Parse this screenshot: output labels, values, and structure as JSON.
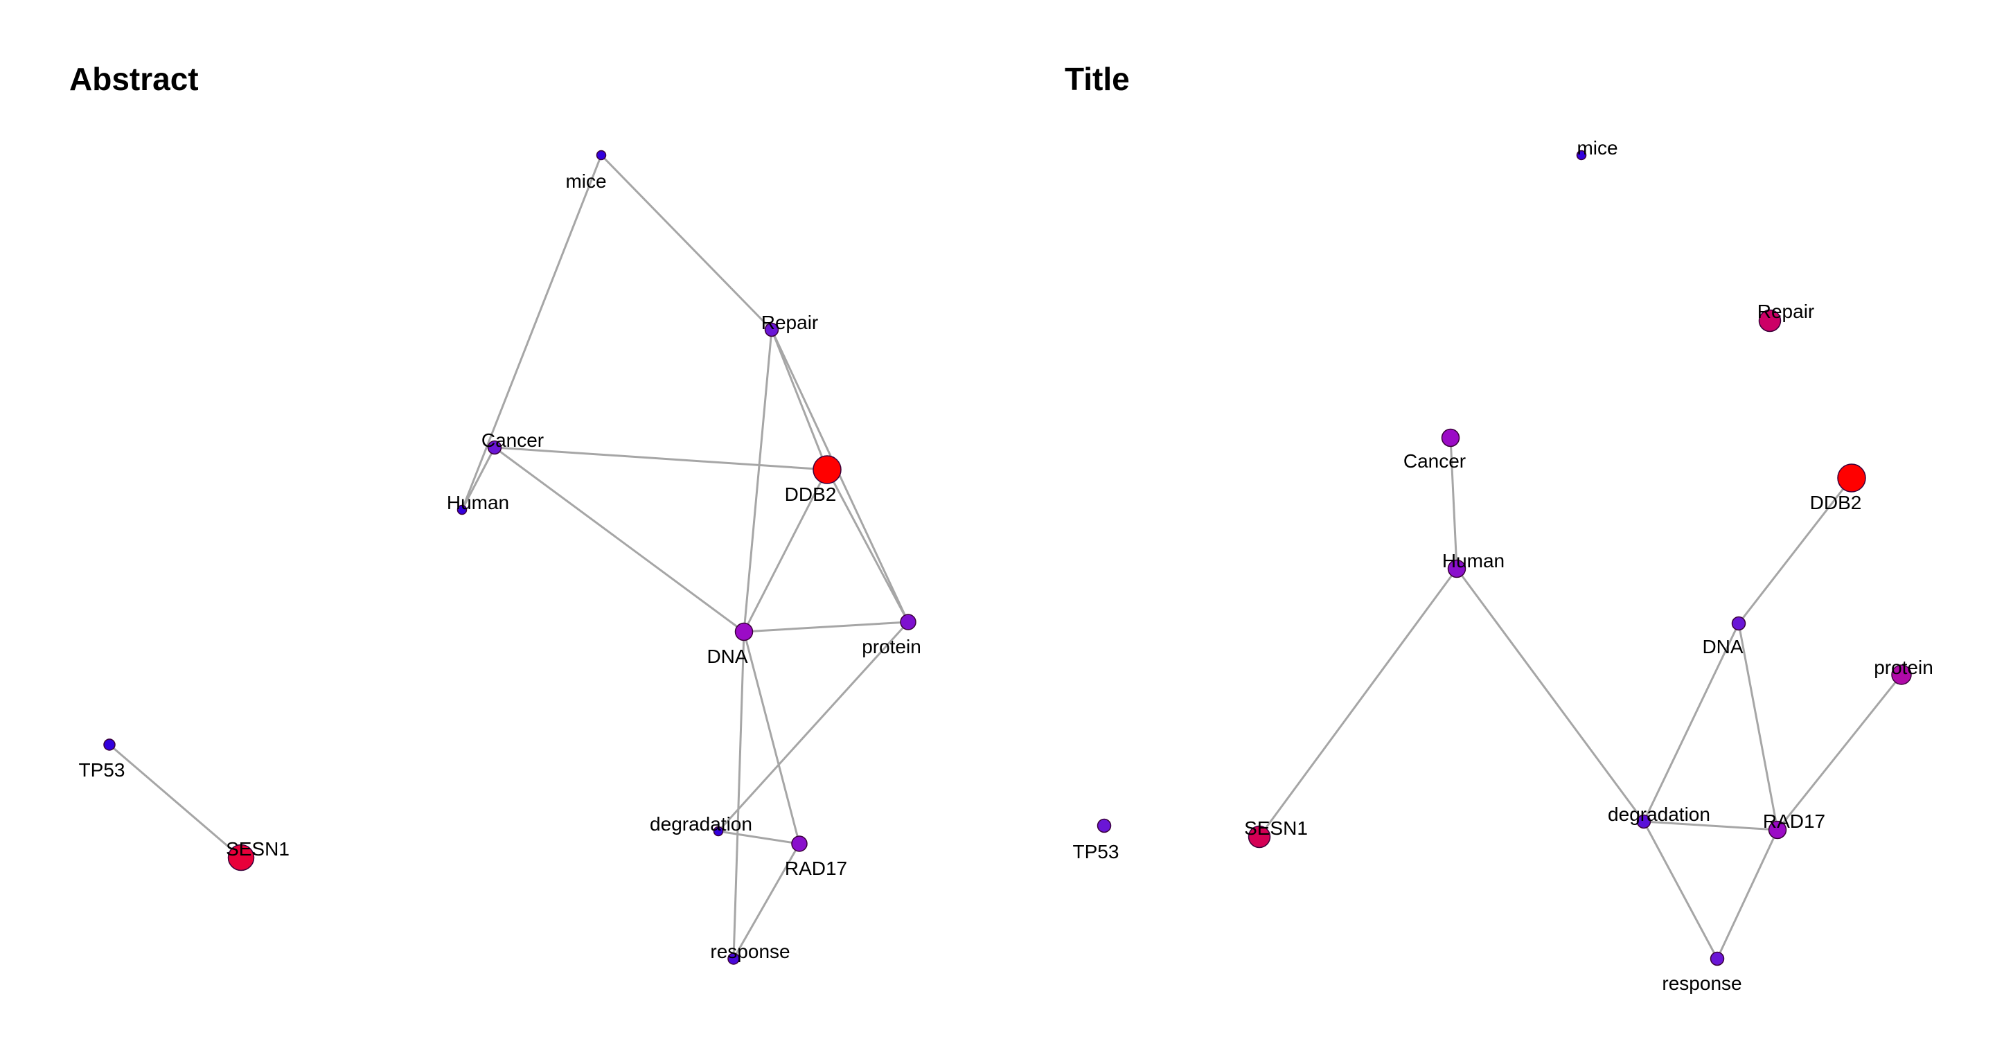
{
  "panels": [
    {
      "key": "abstract",
      "title": "Abstract",
      "nodes": [
        {
          "id": "mice",
          "label": "mice",
          "color": "#3300dd",
          "weight": 1
        },
        {
          "id": "Repair",
          "label": "Repair",
          "color": "#6a16d6",
          "weight": 3
        },
        {
          "id": "Cancer",
          "label": "Cancer",
          "color": "#6a16d6",
          "weight": 3
        },
        {
          "id": "Human",
          "label": "Human",
          "color": "#3300dd",
          "weight": 1
        },
        {
          "id": "DDB2",
          "label": "DDB2",
          "color": "#ff0000",
          "weight": 10
        },
        {
          "id": "DNA",
          "label": "DNA",
          "color": "#9b0bc6",
          "weight": 5
        },
        {
          "id": "protein",
          "label": "protein",
          "color": "#7e10cf",
          "weight": 4
        },
        {
          "id": "TP53",
          "label": "TP53",
          "color": "#3300dd",
          "weight": 2
        },
        {
          "id": "SESN1",
          "label": "SESN1",
          "color": "#e8003a",
          "weight": 9
        },
        {
          "id": "degradation",
          "label": "degradation",
          "color": "#3300dd",
          "weight": 1
        },
        {
          "id": "RAD17",
          "label": "RAD17",
          "color": "#8a0fcc",
          "weight": 4
        },
        {
          "id": "response",
          "label": "response",
          "color": "#4a08da",
          "weight": 2
        }
      ],
      "edges": [
        [
          "mice",
          "Repair"
        ],
        [
          "mice",
          "Human"
        ],
        [
          "Cancer",
          "Human"
        ],
        [
          "Cancer",
          "DDB2"
        ],
        [
          "Cancer",
          "DNA"
        ],
        [
          "Repair",
          "DDB2"
        ],
        [
          "Repair",
          "DNA"
        ],
        [
          "Repair",
          "protein"
        ],
        [
          "DDB2",
          "DNA"
        ],
        [
          "DDB2",
          "protein"
        ],
        [
          "DNA",
          "protein"
        ],
        [
          "DNA",
          "RAD17"
        ],
        [
          "DNA",
          "response"
        ],
        [
          "protein",
          "degradation"
        ],
        [
          "degradation",
          "RAD17"
        ],
        [
          "RAD17",
          "response"
        ],
        [
          "TP53",
          "SESN1"
        ]
      ]
    },
    {
      "key": "title",
      "title": "Title",
      "nodes": [
        {
          "id": "mice",
          "label": "mice",
          "color": "#3300dd",
          "weight": 1
        },
        {
          "id": "Repair",
          "label": "Repair",
          "color": "#cc0066",
          "weight": 7
        },
        {
          "id": "Cancer",
          "label": "Cancer",
          "color": "#9b0bc6",
          "weight": 5
        },
        {
          "id": "DDB2",
          "label": "DDB2",
          "color": "#ff0000",
          "weight": 10
        },
        {
          "id": "Human",
          "label": "Human",
          "color": "#8a0fcc",
          "weight": 5
        },
        {
          "id": "DNA",
          "label": "DNA",
          "color": "#6a16d6",
          "weight": 3
        },
        {
          "id": "protein",
          "label": "protein",
          "color": "#b00aa8",
          "weight": 6
        },
        {
          "id": "TP53",
          "label": "TP53",
          "color": "#6a16d6",
          "weight": 3
        },
        {
          "id": "SESN1",
          "label": "SESN1",
          "color": "#d40055",
          "weight": 7
        },
        {
          "id": "degradation",
          "label": "degradation",
          "color": "#5a10d8",
          "weight": 3
        },
        {
          "id": "RAD17",
          "label": "RAD17",
          "color": "#9b0bc6",
          "weight": 5
        },
        {
          "id": "response",
          "label": "response",
          "color": "#6a16d6",
          "weight": 3
        }
      ],
      "edges": [
        [
          "Cancer",
          "Human"
        ],
        [
          "Human",
          "SESN1"
        ],
        [
          "Human",
          "degradation"
        ],
        [
          "DDB2",
          "DNA"
        ],
        [
          "DNA",
          "degradation"
        ],
        [
          "DNA",
          "RAD17"
        ],
        [
          "protein",
          "RAD17"
        ],
        [
          "degradation",
          "RAD17"
        ],
        [
          "degradation",
          "response"
        ],
        [
          "RAD17",
          "response"
        ]
      ]
    }
  ]
}
